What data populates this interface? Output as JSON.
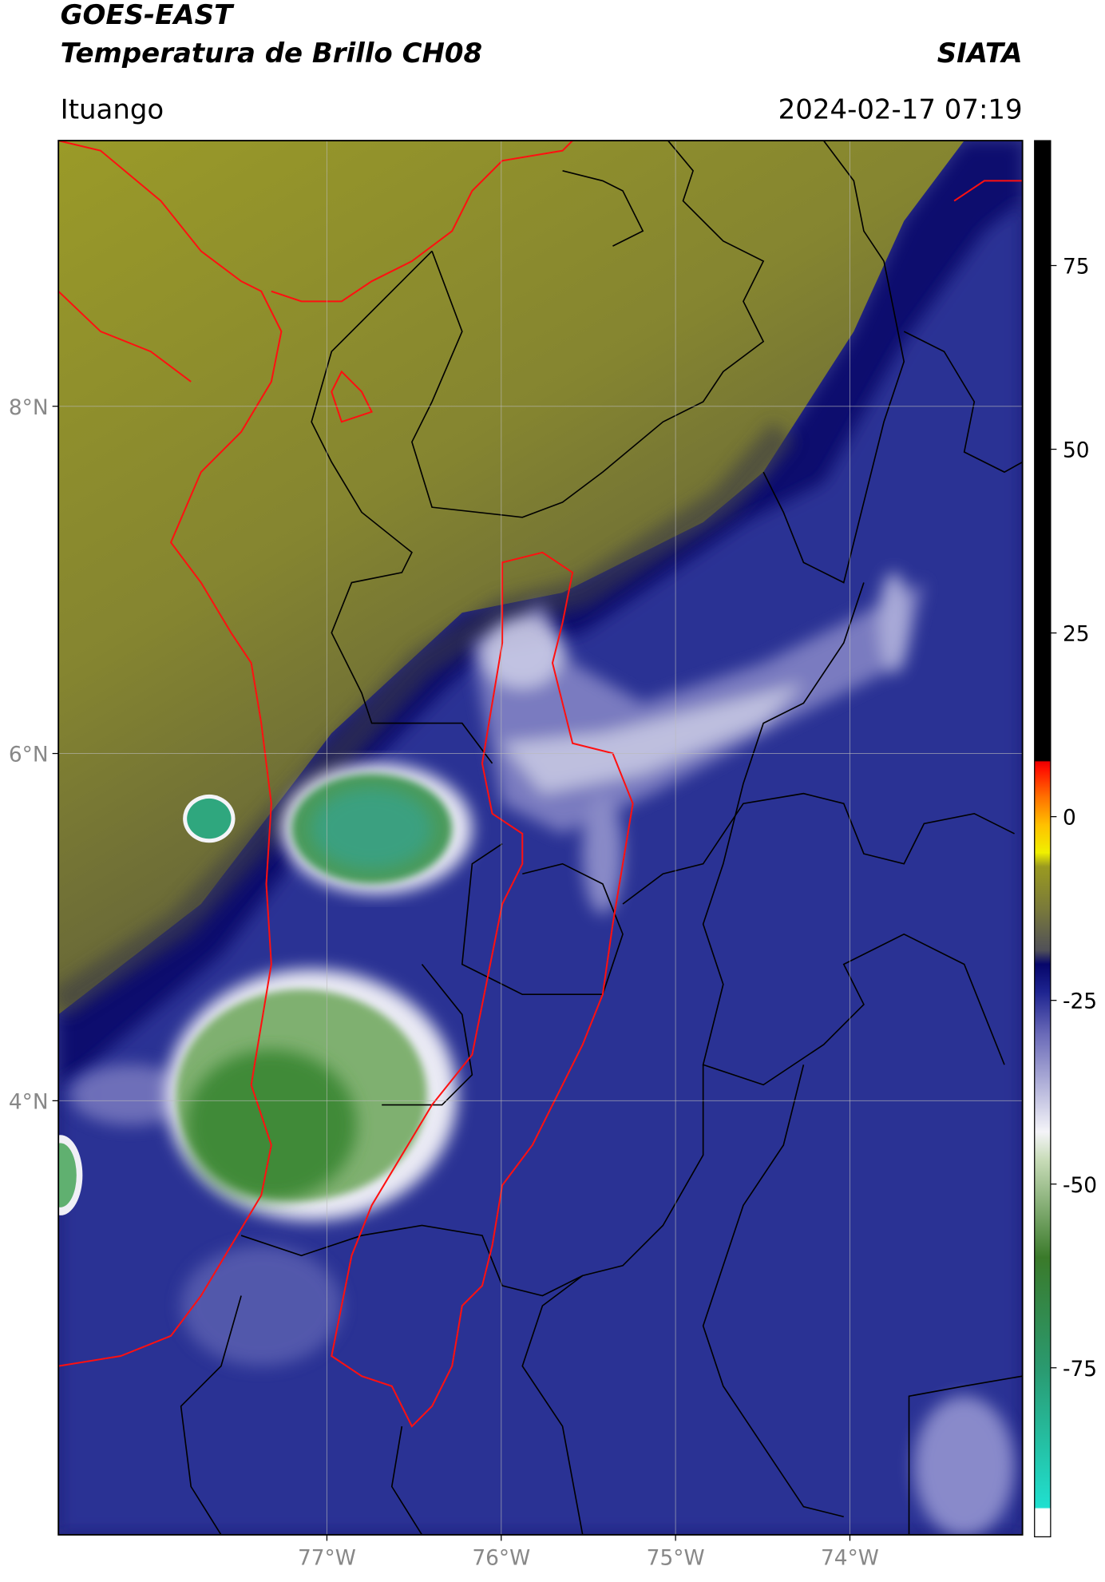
{
  "header": {
    "title": "GOES-EAST",
    "subtitle": "Temperatura de Brillo CH08",
    "brand": "SIATA",
    "location": "Ituango",
    "datetime": "2024-02-17 07:19"
  },
  "map": {
    "xlim": [
      -78.54,
      -73.01
    ],
    "ylim": [
      1.5,
      9.53
    ],
    "xticks": [
      {
        "value": -77,
        "label": "77°W"
      },
      {
        "value": -76,
        "label": "76°W"
      },
      {
        "value": -75,
        "label": "75°W"
      },
      {
        "value": -74,
        "label": "74°W"
      }
    ],
    "yticks": [
      {
        "value": 8,
        "label": "8°N"
      },
      {
        "value": 6,
        "label": "6°N"
      },
      {
        "value": 4,
        "label": "4°N"
      }
    ],
    "grid": true
  },
  "colorbar": {
    "lim": [
      -98,
      92
    ],
    "ticks": [
      75,
      50,
      25,
      0,
      -25,
      -50,
      -75
    ]
  }
}
